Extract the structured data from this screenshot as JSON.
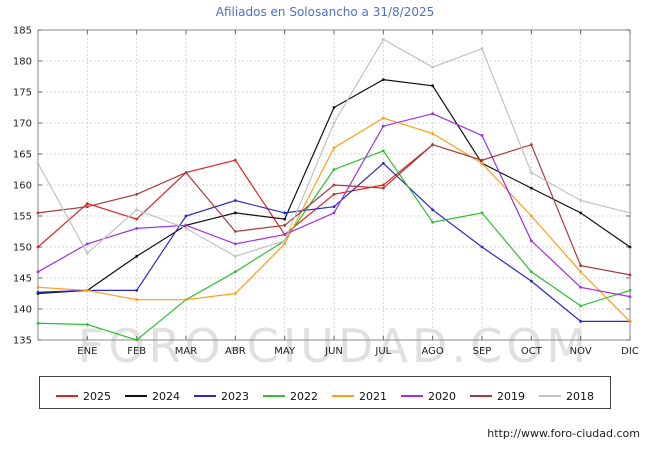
{
  "page": {
    "watermark": "FORO-CIUDAD.COM",
    "footer_url": "http://www.foro-ciudad.com"
  },
  "chart_data": {
    "type": "line",
    "title": "Afiliados en Solosancho a 31/8/2025",
    "title_color": "#4a72c9",
    "x_labels": [
      "",
      "ENE",
      "FEB",
      "MAR",
      "ABR",
      "MAY",
      "JUN",
      "JUL",
      "AGO",
      "SEP",
      "OCT",
      "NOV",
      "DIC"
    ],
    "ylim": [
      135,
      185
    ],
    "y_ticks": [
      135,
      140,
      145,
      150,
      155,
      160,
      165,
      170,
      175,
      180,
      185
    ],
    "grid": true,
    "legend_position": "bottom",
    "series": [
      {
        "name": "2025",
        "color": "#e32222",
        "values": [
          150,
          157,
          154.5,
          162,
          164,
          152,
          158.5,
          160,
          166.5
        ]
      },
      {
        "name": "2024",
        "color": "#111111",
        "values": [
          142.5,
          143,
          148.5,
          153.5,
          155.5,
          154.5,
          172.5,
          177,
          176,
          163.5,
          159.5,
          155.5,
          150
        ]
      },
      {
        "name": "2023",
        "color": "#2a2ac8",
        "values": [
          142.7,
          143,
          143,
          155,
          157.5,
          155.5,
          156.5,
          163.5,
          156,
          150,
          144.5,
          138,
          138
        ]
      },
      {
        "name": "2022",
        "color": "#2fbe2f",
        "values": [
          137.7,
          137.5,
          135,
          141.5,
          146,
          151,
          162.5,
          165.5,
          154,
          155.5,
          146,
          140.5,
          143
        ]
      },
      {
        "name": "2021",
        "color": "#ff9d1a",
        "values": [
          143.5,
          143,
          141.5,
          141.5,
          142.5,
          150.5,
          166,
          170.8,
          168.3,
          163.5,
          155,
          146,
          138
        ]
      },
      {
        "name": "2020",
        "color": "#a02fe0",
        "values": [
          146,
          150.5,
          153,
          153.5,
          150.5,
          152,
          155.5,
          169.5,
          171.5,
          168,
          151,
          143.5,
          142
        ]
      },
      {
        "name": "2019",
        "color": "#aa3a3a",
        "values": [
          155.5,
          156.5,
          158.5,
          162,
          152.5,
          153.5,
          160,
          159.5,
          166.5,
          164,
          166.5,
          147,
          145.5
        ]
      },
      {
        "name": "2018",
        "color": "#c2c2c2",
        "values": [
          163.5,
          149,
          156,
          153,
          148.5,
          151,
          170,
          183.5,
          179,
          182,
          162,
          157.5,
          155.5
        ]
      }
    ]
  }
}
